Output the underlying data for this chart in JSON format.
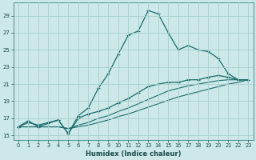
{
  "xlabel": "Humidex (Indice chaleur)",
  "background_color": "#cde8e8",
  "grid_color": "#a8d0d0",
  "line_color": "#1a6b6b",
  "xlim": [
    -0.5,
    23.5
  ],
  "ylim": [
    14.5,
    30.5
  ],
  "xticks": [
    0,
    1,
    2,
    3,
    4,
    5,
    6,
    7,
    8,
    9,
    10,
    11,
    12,
    13,
    14,
    15,
    16,
    17,
    18,
    19,
    20,
    21,
    22,
    23
  ],
  "yticks": [
    15,
    17,
    19,
    21,
    23,
    25,
    27,
    29
  ],
  "line1_x": [
    0,
    1,
    2,
    3,
    4,
    5,
    6,
    7,
    8,
    9,
    10,
    11,
    12,
    13,
    14,
    15,
    16,
    17,
    18,
    19,
    20,
    21,
    22,
    23
  ],
  "line1_y": [
    16.0,
    16.7,
    16.0,
    16.4,
    16.8,
    15.2,
    17.3,
    18.2,
    20.5,
    22.2,
    24.5,
    26.7,
    27.2,
    29.6,
    29.2,
    27.0,
    25.0,
    25.5,
    25.0,
    24.8,
    24.0,
    22.2,
    21.5,
    21.5
  ],
  "line2_x": [
    0,
    1,
    2,
    3,
    4,
    5,
    6,
    7,
    8,
    9,
    10,
    11,
    12,
    13,
    14,
    15,
    16,
    17,
    18,
    19,
    20,
    21,
    22,
    23
  ],
  "line2_y": [
    16.0,
    16.5,
    16.2,
    16.5,
    16.8,
    15.2,
    17.0,
    17.5,
    17.8,
    18.2,
    18.8,
    19.3,
    20.0,
    20.7,
    21.0,
    21.2,
    21.2,
    21.5,
    21.5,
    21.8,
    22.0,
    21.8,
    21.5,
    21.5
  ],
  "line3_x": [
    0,
    1,
    2,
    3,
    4,
    5,
    6,
    7,
    8,
    9,
    10,
    11,
    12,
    13,
    14,
    15,
    16,
    17,
    18,
    19,
    20,
    21,
    22,
    23
  ],
  "line3_y": [
    16.0,
    16.0,
    16.0,
    16.0,
    16.0,
    15.8,
    16.2,
    16.5,
    17.0,
    17.3,
    17.8,
    18.2,
    18.7,
    19.2,
    19.7,
    20.2,
    20.5,
    20.8,
    21.0,
    21.2,
    21.4,
    21.5,
    21.5,
    21.5
  ],
  "line4_x": [
    0,
    1,
    2,
    3,
    4,
    5,
    6,
    7,
    8,
    9,
    10,
    11,
    12,
    13,
    14,
    15,
    16,
    17,
    18,
    19,
    20,
    21,
    22,
    23
  ],
  "line4_y": [
    16.0,
    16.0,
    16.0,
    16.0,
    16.0,
    15.8,
    16.0,
    16.2,
    16.5,
    16.8,
    17.2,
    17.5,
    17.9,
    18.3,
    18.7,
    19.1,
    19.5,
    19.8,
    20.1,
    20.4,
    20.7,
    21.0,
    21.2,
    21.5
  ]
}
